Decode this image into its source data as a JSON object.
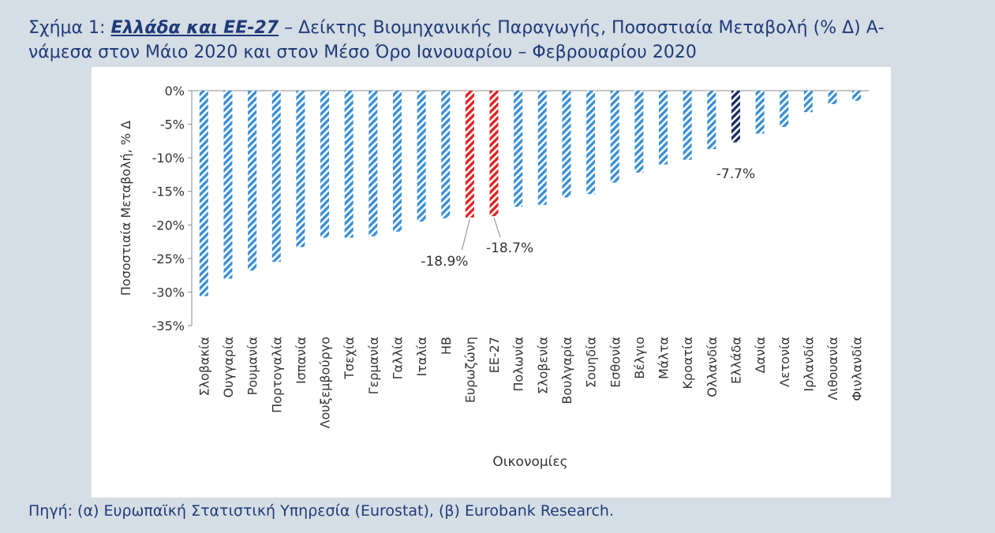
{
  "title": {
    "prefix": "Σχήμα 1: ",
    "emphasis": "Ελλάδα και ΕΕ-27",
    "line1_rest": " – Δείκτης Βιομηχανικής Παραγωγής, Ποσοστιαία Μεταβολή (% Δ) Α-",
    "line2": "νάμεσα στον Μάιο 2020 και στον Μέσο Όρο Ιανουαρίου – Φεβρουαρίου 2020"
  },
  "footer": "Πηγή: (α) Ευρωπαϊκή Στατιστική Υπηρεσία (Eurostat), (β) Eurobank Research.",
  "colors": {
    "title": "#1f3a78",
    "default_bar": "#3b8fd3",
    "eu_bar": "#e02222",
    "greece_bar": "#1c2b63",
    "text": "#333333",
    "gridline": "#8a8a8a"
  },
  "chart_data": {
    "type": "bar",
    "title": "",
    "xlabel": "Οικονομίες",
    "ylabel": "Ποσοστιαία Μεταβολή, % Δ",
    "ylim": [
      -35,
      0
    ],
    "yticks": [
      0,
      -5,
      -10,
      -15,
      -20,
      -25,
      -30,
      -35
    ],
    "ytick_labels": [
      "0%",
      "-5%",
      "-10%",
      "-15%",
      "-20%",
      "-25%",
      "-30%",
      "-35%"
    ],
    "categories": [
      "Σλοβακία",
      "Ουγγαρία",
      "Ρουμανία",
      "Πορτογαλία",
      "Ισπανία",
      "Λουξεμβούργο",
      "Τσεχία",
      "Γερμανία",
      "Γαλλία",
      "Ιταλία",
      "ΗΒ",
      "Ευρωζώνη",
      "ΕΕ-27",
      "Πολωνία",
      "Σλοβενία",
      "Βουλγαρία",
      "Σουηδία",
      "Εσθονία",
      "Βέλγιο",
      "Μάλτα",
      "Κροατία",
      "Ολλανδία",
      "Ελλάδα",
      "Δανία",
      "Λετονία",
      "Ιρλανδία",
      "Λιθουανία",
      "Φινλανδία"
    ],
    "values": [
      -30.6,
      -28.0,
      -26.8,
      -25.5,
      -23.3,
      -21.9,
      -21.9,
      -21.7,
      -21.0,
      -19.5,
      -19.0,
      -18.9,
      -18.7,
      -17.3,
      -17.0,
      -15.9,
      -15.4,
      -13.7,
      -12.2,
      -11.0,
      -10.3,
      -8.7,
      -7.7,
      -6.4,
      -5.4,
      -3.2,
      -2.0,
      -1.5
    ],
    "highlight": {
      "Ευρωζώνη": "eu_bar",
      "ΕΕ-27": "eu_bar",
      "Ελλάδα": "greece_bar"
    },
    "annotations": [
      {
        "category": "Ευρωζώνη",
        "text": "-18.9%"
      },
      {
        "category": "ΕΕ-27",
        "text": "-18.7%"
      },
      {
        "category": "Ελλάδα",
        "text": "-7.7%"
      }
    ]
  }
}
